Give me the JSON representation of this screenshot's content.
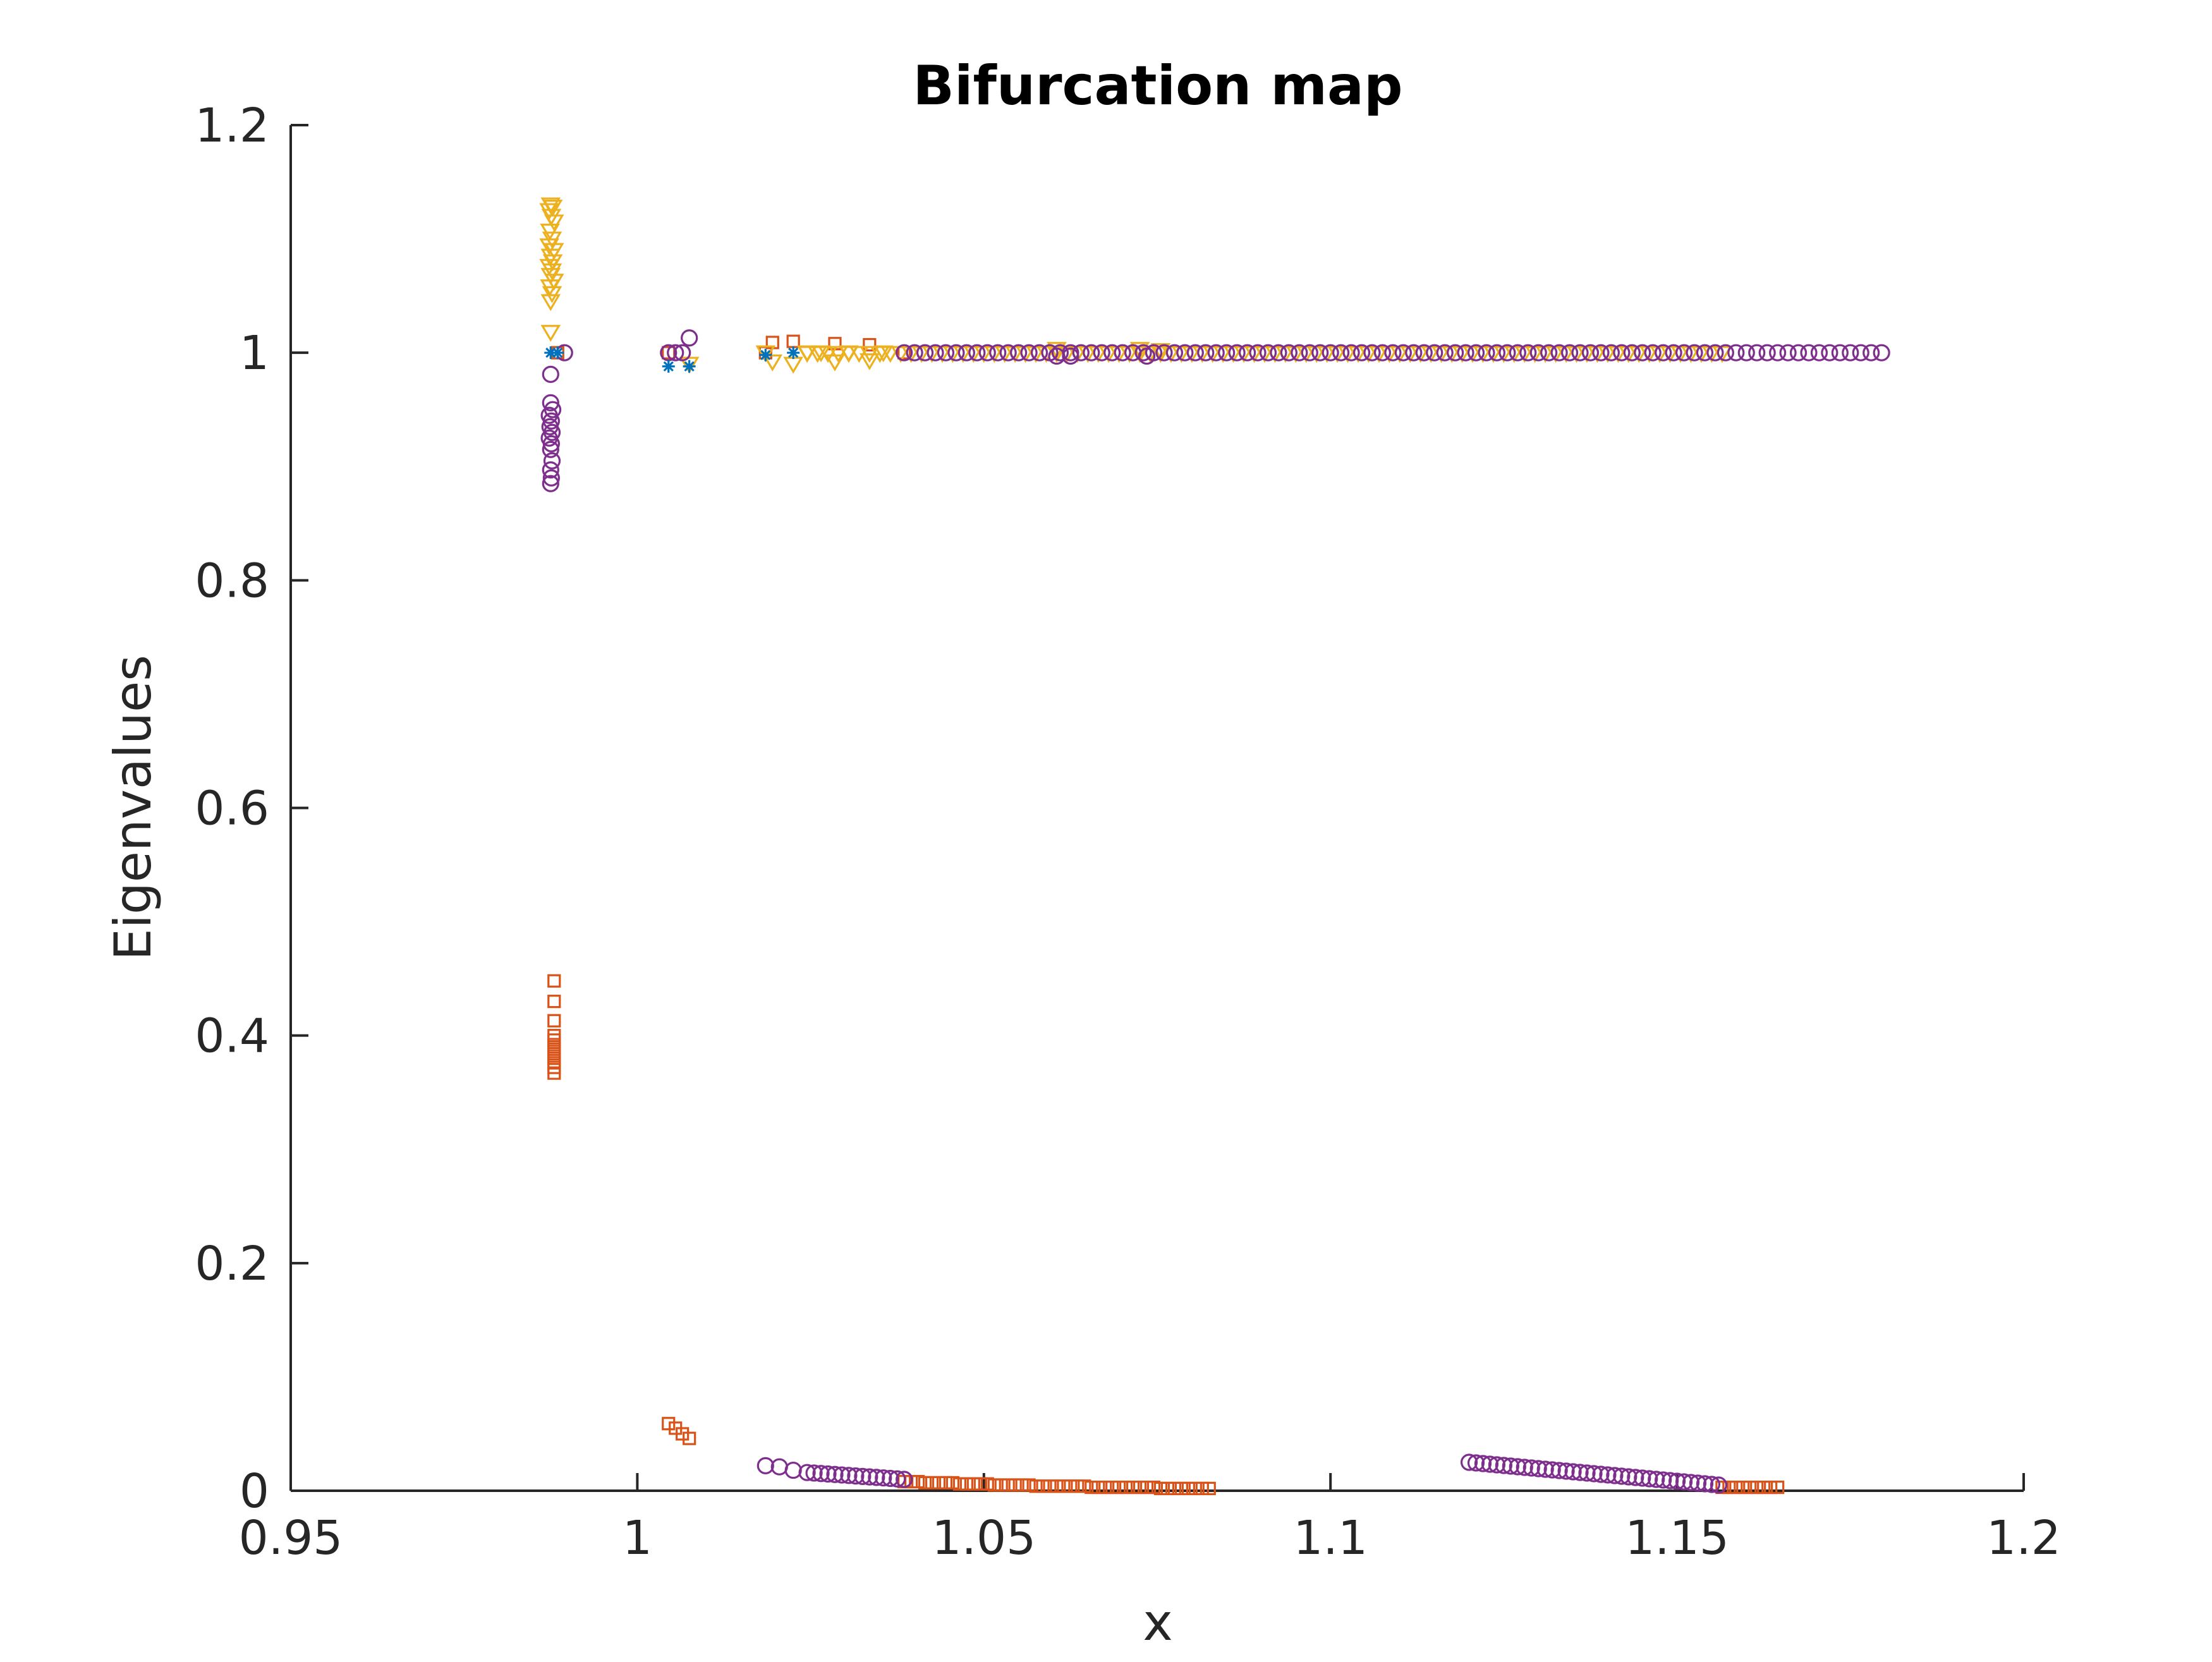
{
  "chart_data": {
    "type": "scatter",
    "title": "Bifurcation map",
    "xlabel": "x",
    "ylabel": "Eigenvalues",
    "xlim": [
      0.95,
      1.2
    ],
    "ylim": [
      0,
      1.2
    ],
    "xticks": [
      "0.95",
      "1",
      "1.05",
      "1.1",
      "1.15",
      "1.2"
    ],
    "yticks": [
      "0",
      "0.2",
      "0.4",
      "0.6",
      "0.8",
      "1",
      "1.2"
    ],
    "grid": false,
    "legend": "none",
    "series": [
      {
        "marker": "asterisk",
        "color": "#0072BD",
        "points": [
          [
            0.9875,
            1.0
          ],
          [
            0.9885,
            1.0
          ],
          [
            1.0045,
            0.988
          ],
          [
            1.0075,
            0.988
          ],
          [
            1.0185,
            0.998
          ],
          [
            1.0225,
            1.0
          ]
        ]
      },
      {
        "marker": "square",
        "color": "#D95319",
        "points": [
          [
            0.988,
            0.448
          ],
          [
            0.988,
            0.43
          ],
          [
            0.988,
            0.413
          ],
          [
            0.988,
            0.4
          ],
          [
            0.988,
            0.396
          ],
          [
            0.988,
            0.392
          ],
          [
            0.988,
            0.388
          ],
          [
            0.988,
            0.384
          ],
          [
            0.988,
            0.38
          ],
          [
            0.988,
            0.376
          ],
          [
            0.988,
            0.372
          ],
          [
            0.988,
            0.367
          ],
          [
            1.0045,
            0.059
          ],
          [
            1.0055,
            0.055
          ],
          [
            1.0065,
            0.05
          ],
          [
            1.0075,
            0.046
          ],
          [
            0.9885,
            1.0
          ],
          [
            1.0045,
            1.0
          ],
          [
            1.0185,
            1.0
          ],
          [
            1.0195,
            1.009
          ],
          [
            1.0225,
            1.01
          ],
          [
            1.0285,
            1.008
          ],
          [
            1.0335,
            1.007
          ],
          [
            1.0385,
            1.0
          ],
          [
            1.0385,
            0.008
          ],
          [
            1.0395,
            0.008
          ],
          [
            1.0405,
            0.008
          ],
          [
            1.0415,
            0.007
          ],
          [
            1.0425,
            0.007
          ],
          [
            1.0435,
            0.007
          ],
          [
            1.0445,
            0.007
          ],
          [
            1.0455,
            0.007
          ],
          [
            1.0465,
            0.006
          ],
          [
            1.0475,
            0.006
          ],
          [
            1.0485,
            0.006
          ],
          [
            1.0495,
            0.006
          ],
          [
            1.0505,
            0.006
          ],
          [
            1.0515,
            0.005
          ],
          [
            1.0525,
            0.005
          ],
          [
            1.0535,
            0.005
          ],
          [
            1.0545,
            0.005
          ],
          [
            1.0555,
            0.005
          ],
          [
            1.0565,
            0.005
          ],
          [
            1.0575,
            0.004
          ],
          [
            1.0585,
            0.004
          ],
          [
            1.0595,
            0.004
          ],
          [
            1.0605,
            0.004
          ],
          [
            1.0615,
            0.004
          ],
          [
            1.0625,
            0.004
          ],
          [
            1.0635,
            0.004
          ],
          [
            1.0645,
            0.004
          ],
          [
            1.0655,
            0.003
          ],
          [
            1.0665,
            0.003
          ],
          [
            1.0675,
            0.003
          ],
          [
            1.0685,
            0.003
          ],
          [
            1.0695,
            0.003
          ],
          [
            1.0705,
            0.003
          ],
          [
            1.0715,
            0.003
          ],
          [
            1.0725,
            0.003
          ],
          [
            1.0735,
            0.003
          ],
          [
            1.0745,
            0.003
          ],
          [
            1.0755,
            0.002
          ],
          [
            1.0765,
            0.002
          ],
          [
            1.0775,
            0.002
          ],
          [
            1.0785,
            0.002
          ],
          [
            1.0795,
            0.002
          ],
          [
            1.0805,
            0.002
          ],
          [
            1.0815,
            0.002
          ],
          [
            1.0825,
            0.002
          ],
          [
            1.1565,
            0.003
          ],
          [
            1.1575,
            0.003
          ],
          [
            1.1585,
            0.003
          ],
          [
            1.1595,
            0.003
          ],
          [
            1.1605,
            0.003
          ],
          [
            1.1615,
            0.003
          ],
          [
            1.1625,
            0.003
          ],
          [
            1.1635,
            0.003
          ],
          [
            1.1645,
            0.003
          ]
        ]
      },
      {
        "marker": "triangle-down",
        "color": "#EDB120",
        "points": [
          [
            0.9875,
            1.13
          ],
          [
            0.9878,
            1.128
          ],
          [
            0.9873,
            1.125
          ],
          [
            0.9876,
            1.12
          ],
          [
            0.988,
            1.115
          ],
          [
            0.9874,
            1.107
          ],
          [
            0.9877,
            1.1
          ],
          [
            0.9873,
            1.094
          ],
          [
            0.988,
            1.09
          ],
          [
            0.9875,
            1.085
          ],
          [
            0.9878,
            1.08
          ],
          [
            0.9873,
            1.076
          ],
          [
            0.9877,
            1.072
          ],
          [
            0.9875,
            1.068
          ],
          [
            0.988,
            1.063
          ],
          [
            0.9874,
            1.058
          ],
          [
            0.9877,
            1.052
          ],
          [
            0.9875,
            1.045
          ],
          [
            0.9875,
            1.018
          ],
          [
            1.0075,
            0.99
          ],
          [
            1.0185,
            1.0
          ],
          [
            1.0195,
            0.992
          ],
          [
            1.0225,
            0.99
          ],
          [
            1.0245,
            1.0
          ],
          [
            1.0265,
            1.0
          ],
          [
            1.0285,
            0.992
          ],
          [
            1.0305,
            1.0
          ],
          [
            1.0335,
            0.993
          ],
          [
            1.0355,
            1.0
          ],
          [
            1.0605,
            1.003
          ],
          [
            1.0725,
            1.003
          ],
          [
            1.0755,
            1.002
          ]
        ],
        "band": {
          "x_start": 1.0245,
          "x_end": 1.157,
          "step": 0.0015,
          "y": 0.9995
        }
      },
      {
        "marker": "circle",
        "color": "#7E2F8E",
        "points": [
          [
            0.9875,
            0.981
          ],
          [
            0.9875,
            0.956
          ],
          [
            0.9878,
            0.95
          ],
          [
            0.9873,
            0.945
          ],
          [
            0.9876,
            0.94
          ],
          [
            0.9874,
            0.935
          ],
          [
            0.9877,
            0.93
          ],
          [
            0.9873,
            0.925
          ],
          [
            0.9876,
            0.92
          ],
          [
            0.9875,
            0.915
          ],
          [
            0.9877,
            0.905
          ],
          [
            0.9875,
            0.897
          ],
          [
            0.9876,
            0.89
          ],
          [
            0.9875,
            0.885
          ],
          [
            0.9895,
            1.0
          ],
          [
            1.0045,
            1.0
          ],
          [
            1.0055,
            1.0
          ],
          [
            1.0065,
            1.0
          ],
          [
            1.0075,
            1.013
          ],
          [
            1.0185,
            0.022
          ],
          [
            1.0205,
            0.021
          ],
          [
            1.0225,
            0.018
          ],
          [
            1.0605,
            0.997
          ],
          [
            1.0625,
            0.997
          ],
          [
            1.0735,
            0.997
          ]
        ],
        "bands": [
          {
            "x_start": 1.0245,
            "x_end": 1.0385,
            "step": 0.001,
            "y_start": 0.016,
            "y_end": 0.01
          },
          {
            "x_start": 1.12,
            "x_end": 1.156,
            "step": 0.001,
            "y_start": 0.025,
            "y_end": 0.005
          },
          {
            "x_start": 1.0385,
            "x_end": 1.18,
            "step": 0.0015,
            "y_start": 1.0,
            "y_end": 1.0
          }
        ]
      }
    ]
  }
}
